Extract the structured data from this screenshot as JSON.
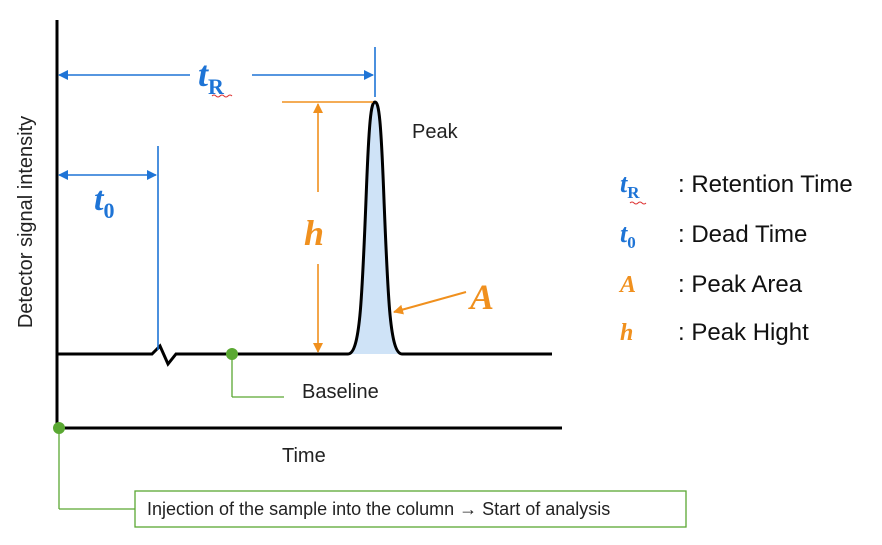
{
  "axes": {
    "y_label": "Detector signal intensity",
    "x_label": "Time"
  },
  "annotations": {
    "tR": {
      "main": "t",
      "sub": "R"
    },
    "t0": {
      "main": "t",
      "sub": "0"
    },
    "h": "h",
    "A": "A",
    "peak": "Peak",
    "baseline": "Baseline",
    "injection": "Injection of the sample into the column → Start of analysis"
  },
  "legend": [
    {
      "symbol": "t",
      "sub": "R",
      "text": ": Retention Time",
      "color": "#1e74d6"
    },
    {
      "symbol": "t",
      "sub": "0",
      "text": ": Dead Time",
      "color": "#1e74d6"
    },
    {
      "symbol": "A",
      "sub": "",
      "text": ": Peak Area",
      "color": "#f0901e"
    },
    {
      "symbol": "h",
      "sub": "",
      "text": ": Peak Hight",
      "color": "#f0901e"
    }
  ],
  "colors": {
    "blue": "#1e74d6",
    "orange": "#f0901e",
    "green": "#5aa832",
    "peak_fill": "#cfe3f7",
    "axis": "#000000"
  }
}
